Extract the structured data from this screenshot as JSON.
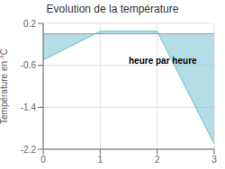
{
  "chart_data": {
    "type": "area",
    "title": "Evolution de la température",
    "ylabel": "Température en °C",
    "annotation": "heure par heure",
    "x": [
      0,
      1,
      2,
      3
    ],
    "values": [
      -0.5,
      0.05,
      0.05,
      -2.1
    ],
    "baseline": 0,
    "xlim": [
      0,
      3
    ],
    "ylim": [
      -2.2,
      0.2
    ],
    "xticks": [
      0,
      1,
      2,
      3
    ],
    "yticks": [
      0.2,
      -0.6,
      -1.4,
      -2.2
    ],
    "color": "#6bbccc",
    "grid": true
  }
}
